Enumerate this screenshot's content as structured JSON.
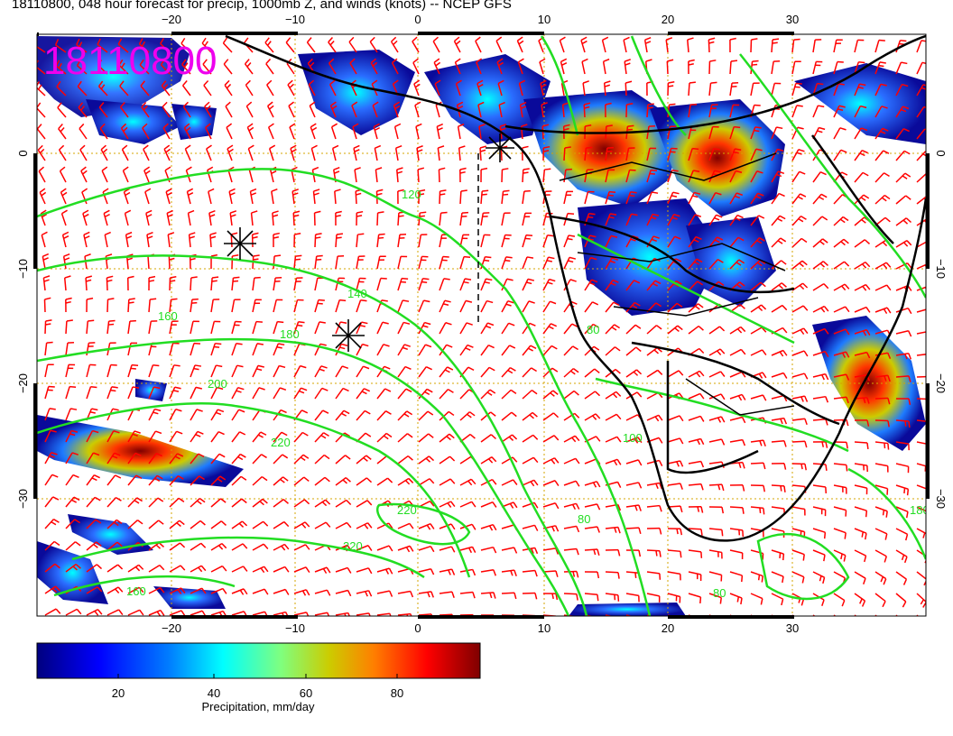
{
  "title": "18110800, 048 hour forecast for precip, 1000mb Z, and winds (knots) -- NCEP GFS",
  "stamp": "18110800",
  "axes": {
    "lon_ticks_bottom": [
      "−20",
      "−10",
      "0",
      "10",
      "20",
      "30"
    ],
    "lon_ticks_top": [
      "−20",
      "−10",
      "0",
      "10",
      "20",
      "30"
    ],
    "lat_ticks_left": [
      "0",
      "−10",
      "−20",
      "−30"
    ],
    "lat_ticks_right": [
      "0",
      "−10",
      "−20",
      "−30"
    ]
  },
  "contour_labels": [
    "80",
    "100",
    "120",
    "140",
    "160",
    "180",
    "200",
    "220"
  ],
  "colorbar": {
    "label": "Precipitation, mm/day",
    "ticks": [
      "20",
      "40",
      "60",
      "80"
    ],
    "colors": [
      "#00007f",
      "#0000ff",
      "#007fff",
      "#00ffff",
      "#7fff7f",
      "#cccc00",
      "#ff7f00",
      "#ff0000",
      "#7f0000"
    ]
  },
  "colors": {
    "contour": "#22dd22",
    "wind_barb": "#ff0000",
    "stamp": "#ee00ee",
    "grid": "#d4a400"
  },
  "markers": [
    "storm-marker",
    "storm-marker",
    "storm-marker"
  ]
}
